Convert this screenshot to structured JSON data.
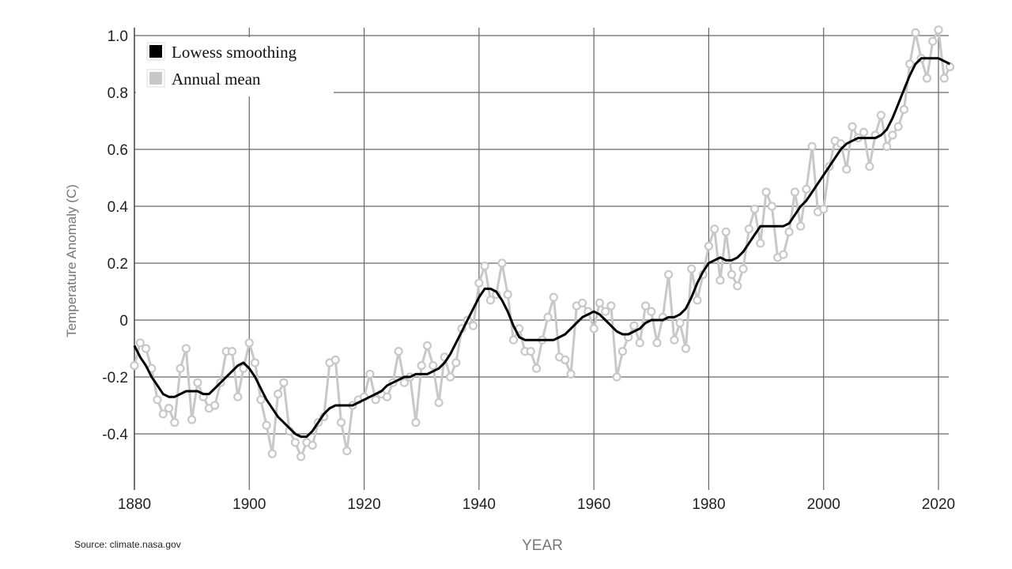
{
  "chart_data": {
    "type": "line",
    "title": "",
    "xlabel": "YEAR",
    "ylabel": "Temperature Anomaly (C)",
    "source": "Source: climate.nasa.gov",
    "xlim": [
      1880,
      2022
    ],
    "ylim": [
      -0.6,
      1.03
    ],
    "grid": true,
    "legend_position": "top-left",
    "x_ticks": [
      "1880",
      "1900",
      "1920",
      "1940",
      "1960",
      "1980",
      "2000",
      "2020"
    ],
    "y_ticks": [
      "1.0",
      "0.8",
      "0.6",
      "0.4",
      "0.2",
      "0",
      "-0.2",
      "-0.4"
    ],
    "x_start": 1880,
    "series": [
      {
        "name": "Lowess smoothing",
        "color": "#000000",
        "values": [
          -0.09,
          -0.13,
          -0.16,
          -0.2,
          -0.23,
          -0.26,
          -0.27,
          -0.27,
          -0.26,
          -0.25,
          -0.25,
          -0.25,
          -0.26,
          -0.26,
          -0.24,
          -0.22,
          -0.2,
          -0.18,
          -0.16,
          -0.15,
          -0.17,
          -0.2,
          -0.24,
          -0.28,
          -0.31,
          -0.34,
          -0.36,
          -0.38,
          -0.4,
          -0.41,
          -0.41,
          -0.39,
          -0.36,
          -0.33,
          -0.31,
          -0.3,
          -0.3,
          -0.3,
          -0.3,
          -0.29,
          -0.28,
          -0.27,
          -0.26,
          -0.25,
          -0.23,
          -0.22,
          -0.21,
          -0.2,
          -0.2,
          -0.19,
          -0.19,
          -0.19,
          -0.18,
          -0.17,
          -0.15,
          -0.12,
          -0.08,
          -0.04,
          0.0,
          0.04,
          0.08,
          0.11,
          0.11,
          0.1,
          0.07,
          0.03,
          -0.02,
          -0.06,
          -0.07,
          -0.07,
          -0.07,
          -0.07,
          -0.07,
          -0.07,
          -0.06,
          -0.05,
          -0.03,
          -0.01,
          0.01,
          0.02,
          0.03,
          0.02,
          0.0,
          -0.02,
          -0.04,
          -0.05,
          -0.05,
          -0.04,
          -0.03,
          -0.01,
          0.0,
          0.0,
          0.0,
          0.01,
          0.01,
          0.02,
          0.04,
          0.08,
          0.13,
          0.17,
          0.2,
          0.21,
          0.22,
          0.21,
          0.21,
          0.22,
          0.24,
          0.27,
          0.3,
          0.33,
          0.33,
          0.33,
          0.33,
          0.33,
          0.34,
          0.37,
          0.4,
          0.42,
          0.45,
          0.48,
          0.51,
          0.54,
          0.57,
          0.6,
          0.62,
          0.63,
          0.64,
          0.64,
          0.64,
          0.64,
          0.65,
          0.67,
          0.71,
          0.76,
          0.81,
          0.86,
          0.9,
          0.92,
          0.92,
          0.92,
          0.92,
          0.91,
          0.9
        ]
      },
      {
        "name": "Annual mean",
        "color": "#c8c8c8",
        "values": [
          -0.16,
          -0.08,
          -0.1,
          -0.17,
          -0.28,
          -0.33,
          -0.31,
          -0.36,
          -0.17,
          -0.1,
          -0.35,
          -0.22,
          -0.27,
          -0.31,
          -0.3,
          -0.22,
          -0.11,
          -0.11,
          -0.27,
          -0.17,
          -0.08,
          -0.15,
          -0.28,
          -0.37,
          -0.47,
          -0.26,
          -0.22,
          -0.39,
          -0.43,
          -0.48,
          -0.43,
          -0.44,
          -0.36,
          -0.34,
          -0.15,
          -0.14,
          -0.36,
          -0.46,
          -0.3,
          -0.28,
          -0.27,
          -0.19,
          -0.28,
          -0.26,
          -0.27,
          -0.22,
          -0.11,
          -0.22,
          -0.2,
          -0.36,
          -0.16,
          -0.09,
          -0.16,
          -0.29,
          -0.13,
          -0.2,
          -0.15,
          -0.03,
          0.0,
          -0.02,
          0.13,
          0.19,
          0.07,
          0.09,
          0.2,
          0.09,
          -0.07,
          -0.03,
          -0.11,
          -0.11,
          -0.17,
          -0.07,
          0.01,
          0.08,
          -0.13,
          -0.14,
          -0.19,
          0.05,
          0.06,
          0.03,
          -0.03,
          0.06,
          0.03,
          0.05,
          -0.2,
          -0.11,
          -0.06,
          -0.02,
          -0.08,
          0.05,
          0.03,
          -0.08,
          0.01,
          0.16,
          -0.07,
          -0.01,
          -0.1,
          0.18,
          0.07,
          0.16,
          0.26,
          0.32,
          0.14,
          0.31,
          0.16,
          0.12,
          0.18,
          0.32,
          0.39,
          0.27,
          0.45,
          0.4,
          0.22,
          0.23,
          0.31,
          0.45,
          0.33,
          0.46,
          0.61,
          0.38,
          0.39,
          0.54,
          0.63,
          0.62,
          0.53,
          0.68,
          0.64,
          0.66,
          0.54,
          0.65,
          0.72,
          0.61,
          0.65,
          0.68,
          0.74,
          0.9,
          1.01,
          0.92,
          0.85,
          0.98,
          1.02,
          0.85,
          0.89
        ]
      }
    ]
  }
}
